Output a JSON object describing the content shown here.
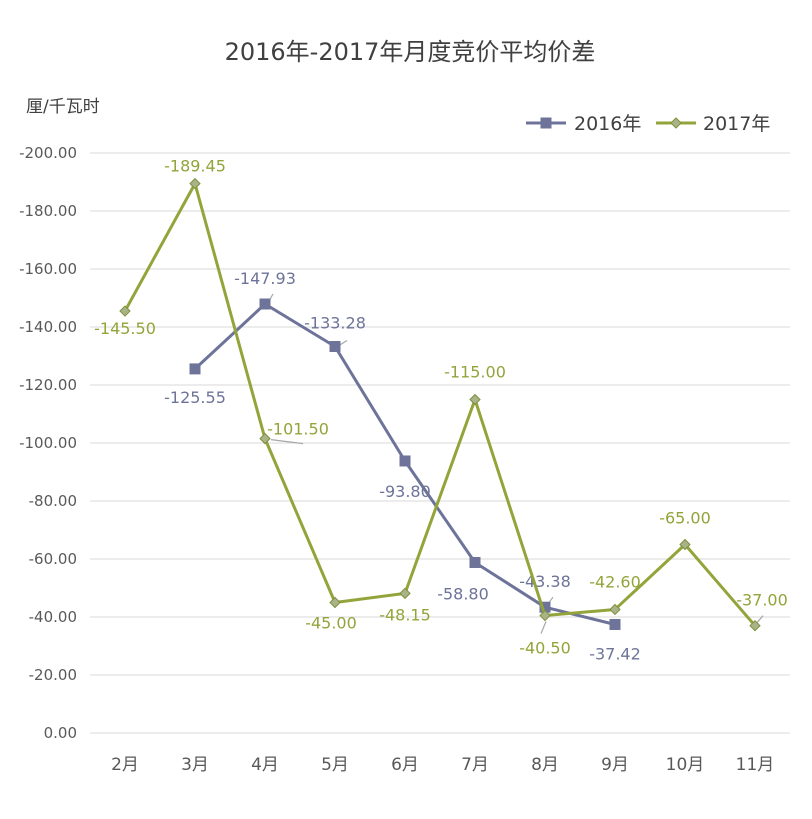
{
  "chart_data": {
    "type": "line",
    "title": "2016年-2017年月度竞价平均价差",
    "ylabel": "厘/千瓦时",
    "xlabel": "",
    "categories": [
      "2月",
      "3月",
      "4月",
      "5月",
      "6月",
      "7月",
      "8月",
      "9月",
      "10月",
      "11月"
    ],
    "ylim": [
      0,
      -200
    ],
    "y_axis_reversed": true,
    "y_ticks": [
      "-200.00",
      "-180.00",
      "-160.00",
      "-140.00",
      "-120.00",
      "-100.00",
      "-80.00",
      "-60.00",
      "-40.00",
      "-20.00",
      "0.00"
    ],
    "y_tick_values": [
      -200,
      -180,
      -160,
      -140,
      -120,
      -100,
      -80,
      -60,
      -40,
      -20,
      0
    ],
    "grid": true,
    "legend_position": "top-right",
    "series": [
      {
        "name": "2016年",
        "color": "#6e7499",
        "marker": "square",
        "values": [
          null,
          -125.55,
          -147.93,
          -133.28,
          -93.8,
          -58.8,
          -43.38,
          -37.42,
          null,
          null
        ],
        "labels": [
          null,
          "-125.55",
          "-147.93",
          "-133.28",
          "-93.80",
          "-58.80",
          "-43.38",
          "-37.42",
          null,
          null
        ]
      },
      {
        "name": "2017年",
        "color": "#93a43a",
        "marker": "diamond",
        "values": [
          -145.5,
          -189.45,
          -101.5,
          -45.0,
          -48.15,
          -115.0,
          -40.5,
          -42.6,
          -65.0,
          -37.0
        ],
        "labels": [
          "-145.50",
          "-189.45",
          "-101.50",
          "-45.00",
          "-48.15",
          "-115.00",
          "-40.50",
          "-42.60",
          "-65.00",
          "-37.00"
        ]
      }
    ]
  }
}
